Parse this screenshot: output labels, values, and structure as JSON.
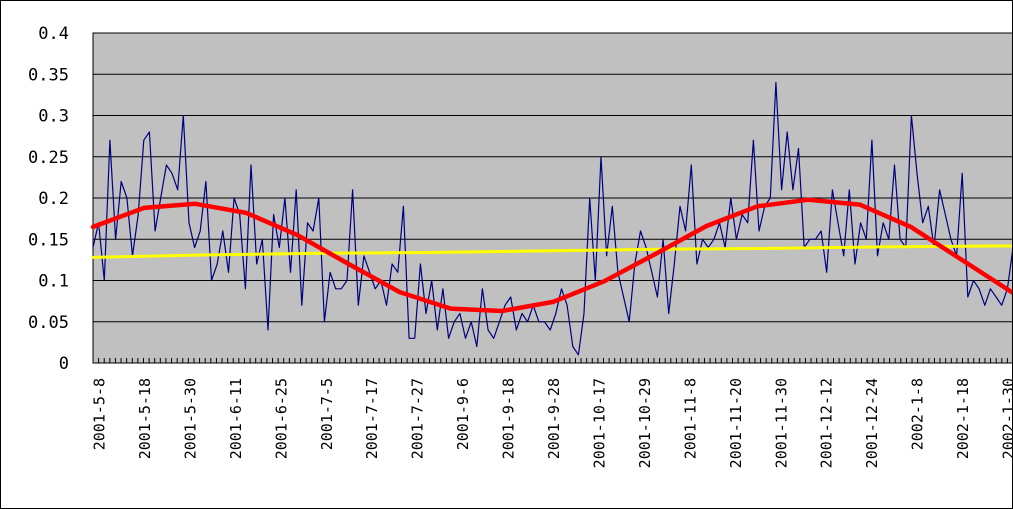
{
  "chart_data": {
    "type": "line",
    "title": "",
    "xlabel": "",
    "ylabel": "",
    "ylim": [
      0,
      0.4
    ],
    "yticks": [
      "0",
      "0.05",
      "0.1",
      "0.15",
      "0.2",
      "0.25",
      "0.3",
      "0.35",
      "0.4"
    ],
    "xticks": [
      "2001-5-8",
      "2001-5-18",
      "2001-5-30",
      "2001-6-11",
      "2001-6-25",
      "2001-7-5",
      "2001-7-17",
      "2001-7-27",
      "2001-9-6",
      "2001-9-18",
      "2001-9-28",
      "2001-10-17",
      "2001-10-29",
      "2001-11-8",
      "2001-11-20",
      "2001-11-30",
      "2001-12-12",
      "2001-12-24",
      "2002-1-8",
      "2002-1-18",
      "2002-1-30"
    ],
    "grid": true,
    "legend": "none",
    "colors": {
      "plot_background": "#c0c0c0",
      "daily_series": "#000080",
      "trend_series": "#ffff00",
      "fit_series": "#ff0000",
      "gridline": "#000000"
    },
    "series": [
      {
        "values": [
          0.14,
          0.17,
          0.1,
          0.27,
          0.15,
          0.22,
          0.2,
          0.13,
          0.18,
          0.27,
          0.28,
          0.16,
          0.2,
          0.24,
          0.23,
          0.21,
          0.3,
          0.17,
          0.14,
          0.16,
          0.22,
          0.1,
          0.12,
          0.16,
          0.11,
          0.2,
          0.18,
          0.09,
          0.24,
          0.12,
          0.15,
          0.04,
          0.18,
          0.14,
          0.2,
          0.11,
          0.21,
          0.07,
          0.17,
          0.16,
          0.2,
          0.05,
          0.11,
          0.09,
          0.09,
          0.1,
          0.21,
          0.07,
          0.13,
          0.11,
          0.09,
          0.1,
          0.07,
          0.12,
          0.11,
          0.19,
          0.03,
          0.03,
          0.12,
          0.06,
          0.1,
          0.04,
          0.09,
          0.03,
          0.05,
          0.06,
          0.03,
          0.05,
          0.02,
          0.09,
          0.04,
          0.03,
          0.05,
          0.07,
          0.08,
          0.04,
          0.06,
          0.05,
          0.07,
          0.05,
          0.05,
          0.04,
          0.06,
          0.09,
          0.07,
          0.02,
          0.01,
          0.06,
          0.2,
          0.1,
          0.25,
          0.13,
          0.19,
          0.11,
          0.08,
          0.05,
          0.12,
          0.16,
          0.14,
          0.11,
          0.08,
          0.15,
          0.06,
          0.12,
          0.19,
          0.16,
          0.24,
          0.12,
          0.15,
          0.14,
          0.15,
          0.17,
          0.14,
          0.2,
          0.15,
          0.18,
          0.17,
          0.27,
          0.16,
          0.19,
          0.2,
          0.34,
          0.21,
          0.28,
          0.21,
          0.26,
          0.14,
          0.15,
          0.15,
          0.16,
          0.11,
          0.21,
          0.17,
          0.13,
          0.21,
          0.12,
          0.17,
          0.15,
          0.27,
          0.13,
          0.17,
          0.15,
          0.24,
          0.15,
          0.14,
          0.3,
          0.23,
          0.17,
          0.19,
          0.14,
          0.21,
          0.18,
          0.15,
          0.13,
          0.23,
          0.08,
          0.1,
          0.09,
          0.07,
          0.09,
          0.08,
          0.07,
          0.09,
          0.14
        ]
      },
      {
        "values": [
          0.128,
          0.131,
          0.133,
          0.134,
          0.136,
          0.138,
          0.139,
          0.141,
          0.142
        ]
      },
      {
        "values": [
          0.165,
          0.188,
          0.193,
          0.182,
          0.155,
          0.12,
          0.086,
          0.066,
          0.063,
          0.074,
          0.099,
          0.132,
          0.166,
          0.19,
          0.198,
          0.192,
          0.165,
          0.125,
          0.085
        ]
      }
    ]
  }
}
